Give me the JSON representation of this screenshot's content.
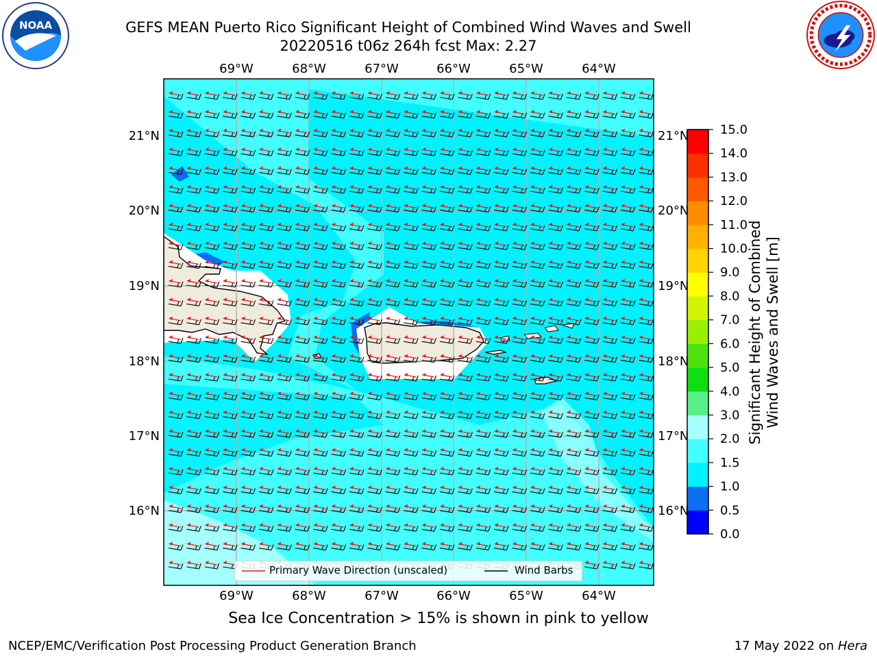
{
  "title": {
    "line1": "GEFS MEAN Puerto Rico Significant Height of Combined Wind Waves and Swell",
    "line2": "20220516 t06z 264h fcst   Max: 2.27"
  },
  "logos": {
    "left": {
      "icon": "noaa-logo-icon",
      "text": "NOAA"
    },
    "right": {
      "icon": "nws-logo-icon",
      "text": "NATIONAL WEATHER SERVICE"
    }
  },
  "map": {
    "lon_labels": [
      "69°W",
      "68°W",
      "67°W",
      "66°W",
      "65°W",
      "64°W"
    ],
    "lat_labels": [
      "21°N",
      "20°N",
      "19°N",
      "18°N",
      "17°N",
      "16°N"
    ],
    "legend": {
      "primary_wave": "Primary Wave Direction (unscaled)",
      "wind_barbs": "Wind Barbs"
    },
    "colors": {
      "land": "#efebdd",
      "wave_arrow": "#ee1111",
      "barb": "#000000"
    }
  },
  "colorbar": {
    "label_line1": "Significant Height of Combined",
    "label_line2": "Wind Waves and Swell [m]",
    "ticks": [
      "0.0",
      "0.5",
      "1.0",
      "1.5",
      "2.0",
      "3.0",
      "4.0",
      "5.0",
      "6.0",
      "7.0",
      "8.0",
      "9.0",
      "10.0",
      "11.0",
      "12.0",
      "13.0",
      "14.0",
      "15.0"
    ],
    "colors": [
      "#0000ff",
      "#0a6ef2",
      "#00f2ff",
      "#44ffff",
      "#a6ffff",
      "#57f08a",
      "#10de10",
      "#50e010",
      "#9aef00",
      "#d2f400",
      "#ffff00",
      "#ffd200",
      "#ffb000",
      "#ff8c00",
      "#ff5a00",
      "#ff3000",
      "#ff0000"
    ]
  },
  "footer": {
    "note": "Sea Ice Concentration > 15% is shown in pink to yellow",
    "left": "NCEP/EMC/Verification Post Processing Product Generation Branch",
    "right_date": "17 May 2022 on",
    "right_host": "Hera"
  }
}
